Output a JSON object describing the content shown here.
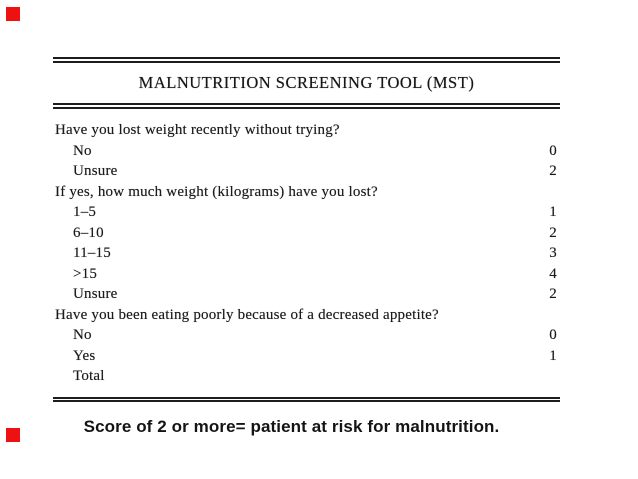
{
  "slide": {
    "background": "#ffffff",
    "accent_red": "#ee1111",
    "text_color": "#1a1a1a"
  },
  "table": {
    "title": "MALNUTRITION SCREENING TOOL (MST)",
    "rows": [
      {
        "label": "Have you lost weight recently without trying?",
        "indent": 0,
        "score": ""
      },
      {
        "label": "No",
        "indent": 1,
        "score": "0"
      },
      {
        "label": "Unsure",
        "indent": 1,
        "score": "2"
      },
      {
        "label": "If yes, how much weight (kilograms) have you lost?",
        "indent": 0,
        "score": ""
      },
      {
        "label": "1–5",
        "indent": 1,
        "score": "1"
      },
      {
        "label": "6–10",
        "indent": 1,
        "score": "2"
      },
      {
        "label": "11–15",
        "indent": 1,
        "score": "3"
      },
      {
        "label": ">15",
        "indent": 1,
        "score": "4"
      },
      {
        "label": "Unsure",
        "indent": 1,
        "score": "2"
      },
      {
        "label": "Have you been eating poorly because of a decreased appetite?",
        "indent": 0,
        "score": ""
      },
      {
        "label": "No",
        "indent": 1,
        "score": "0"
      },
      {
        "label": "Yes",
        "indent": 1,
        "score": "1"
      },
      {
        "label": "Total",
        "indent": 1,
        "score": ""
      }
    ]
  },
  "caption": {
    "text": "Score of 2 or more= patient at risk for malnutrition."
  }
}
